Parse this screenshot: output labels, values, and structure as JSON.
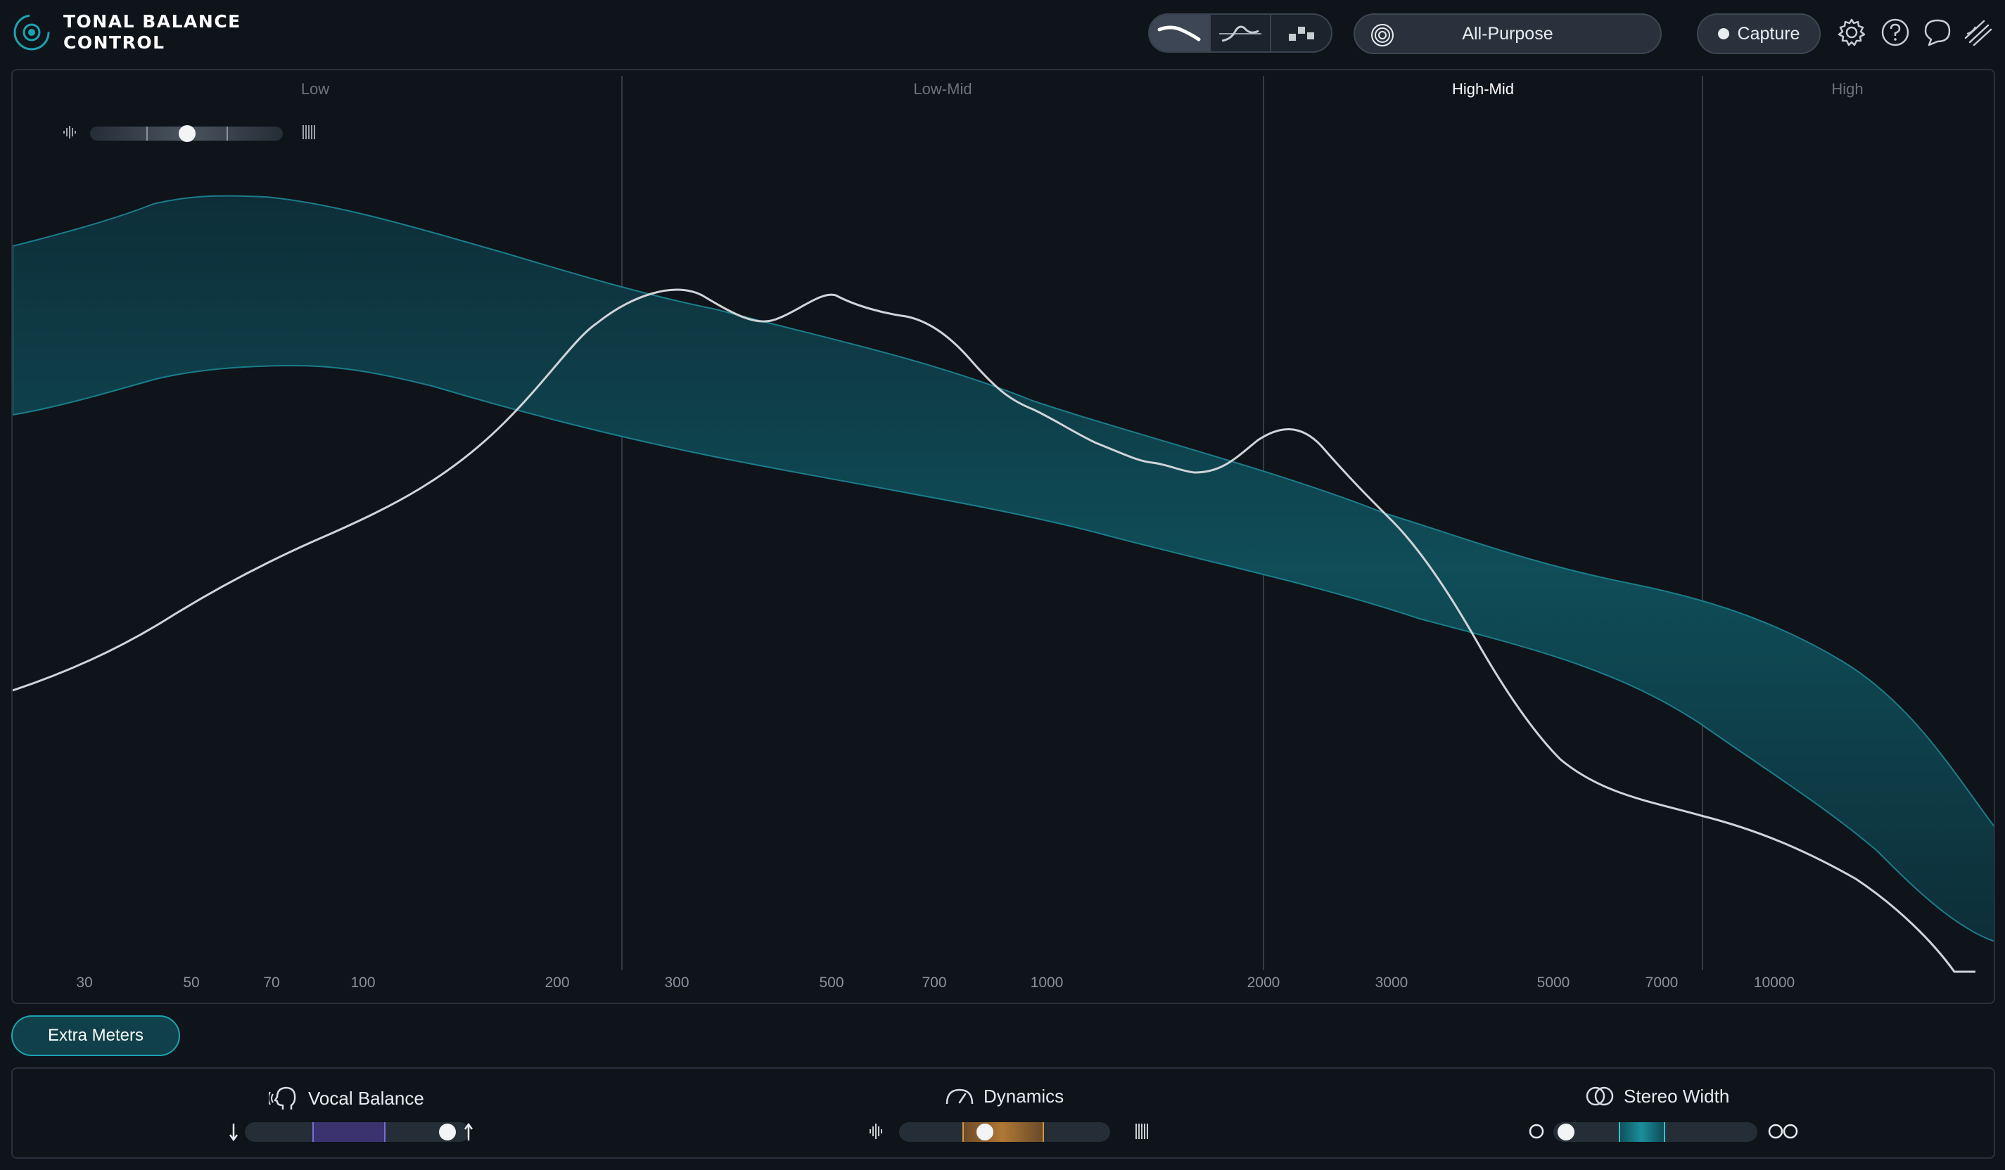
{
  "app": {
    "title_line1": "TONAL BALANCE",
    "title_line2": "CONTROL"
  },
  "toolbar": {
    "view_modes": [
      "broad-view-icon",
      "fine-view-icon",
      "bar-view-icon"
    ],
    "active_view": 0,
    "target_label": "All-Purpose",
    "capture_label": "Capture"
  },
  "graph": {
    "bands": [
      {
        "label": "Low",
        "color": "#6b737d"
      },
      {
        "label": "Low-Mid",
        "color": "#6b737d"
      },
      {
        "label": "High-Mid",
        "color": "#ffffff"
      },
      {
        "label": "High",
        "color": "#6b737d"
      }
    ],
    "band_dividers_hz": [
      250,
      2000,
      8000
    ],
    "freq_ticks": [
      "30",
      "50",
      "70",
      "100",
      "200",
      "300",
      "500",
      "700",
      "1000",
      "2000",
      "3000",
      "5000",
      "7000",
      "10000"
    ],
    "smoothing_level": 0.5
  },
  "extra_meters": {
    "label": "Extra Meters"
  },
  "meters": {
    "vocal_balance": {
      "title": "Vocal Balance",
      "value": 0.97,
      "zone": [
        0.32,
        0.68
      ],
      "zone_color": "#3b3270"
    },
    "dynamics": {
      "title": "Dynamics",
      "value": 0.4,
      "zone": [
        0.32,
        0.68
      ],
      "zone_color": "#a06a2a"
    },
    "stereo_width": {
      "title": "Stereo Width",
      "value": 0.05,
      "zone": [
        0.32,
        0.68
      ],
      "zone_color": "#1a8f9c"
    }
  },
  "colors": {
    "accent": "#1aa3b3",
    "band_fill": "#0f4a55",
    "curve": "#d0d4d8"
  }
}
